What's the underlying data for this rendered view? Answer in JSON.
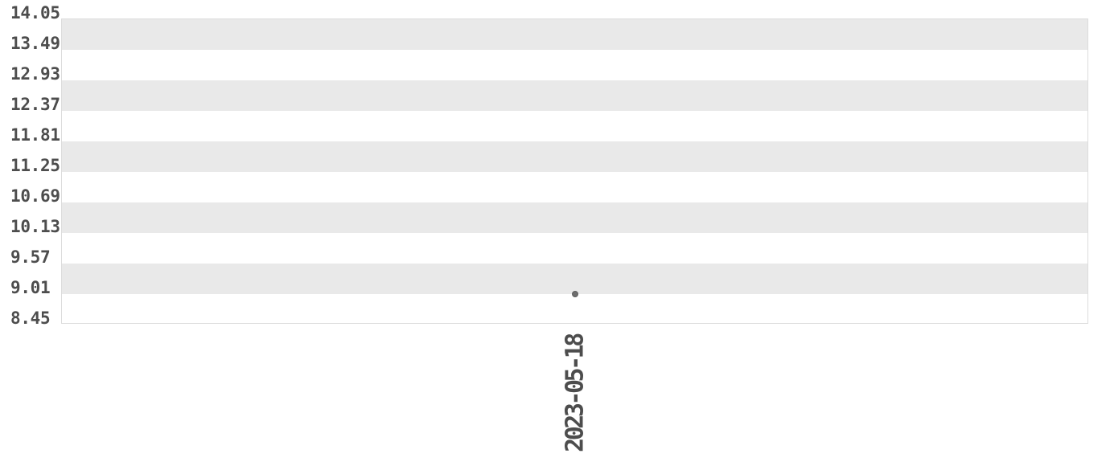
{
  "chart_data": {
    "type": "scatter",
    "title": "",
    "xlabel": "",
    "ylabel": "",
    "x": [
      "2023-05-18"
    ],
    "series": [
      {
        "name": "",
        "values": [
          9.0
        ]
      }
    ],
    "yticks": [
      14.05,
      13.49,
      12.93,
      12.37,
      11.81,
      11.25,
      10.69,
      10.13,
      9.57,
      9.01,
      8.45
    ],
    "ytick_decimals": 2,
    "ylim": [
      8.45,
      14.05
    ],
    "grid": "alternating-horizontal-bands",
    "legend": false,
    "colors": {
      "background": "#ffffff",
      "band": "#e9e9e9",
      "plot_border": "#dcdcdc",
      "tick_text": "#4d4d4d",
      "point": "#6e6e6e",
      "point_edge": "#5e5e5e"
    }
  }
}
